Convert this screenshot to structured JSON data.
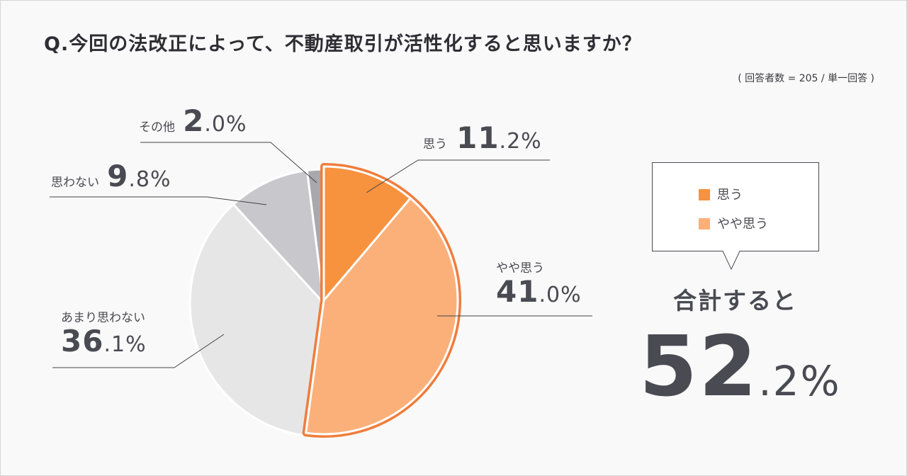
{
  "title": "Q.今回の法改正によって、不動産取引が活性化すると思いますか？",
  "note": "( 回答者数  = 205 / 単一回答 )",
  "colors": {
    "omou": "#f7923f",
    "yaya_omou": "#fbb07a",
    "amari": "#e6e6e6",
    "omowanai": "#c8c8cc",
    "sonota": "#a9a9ad",
    "highlight_outline": "#f07d3c",
    "text": "#4a4a52",
    "leader": "#444444"
  },
  "labels": {
    "omou": {
      "name": "思う",
      "int": "11",
      "dec": ".2%"
    },
    "yaya_omou": {
      "name": "やや思う",
      "int": "41",
      "dec": ".0%"
    },
    "amari": {
      "name": "あまり思わない",
      "int": "36",
      "dec": ".1%"
    },
    "omowanai": {
      "name": "思わない",
      "int": "9",
      "dec": ".8%"
    },
    "sonota": {
      "name": "その他",
      "int": "2",
      "dec": ".0%"
    }
  },
  "legend": {
    "items": [
      "思う",
      "やや思う"
    ]
  },
  "total": {
    "label": "合計すると",
    "int": "52",
    "dec": ".2%"
  },
  "chart_data": {
    "type": "pie",
    "title": "Q.今回の法改正によって、不動産取引が活性化すると思いますか？",
    "categories": [
      "思う",
      "やや思う",
      "あまり思わない",
      "思わない",
      "その他"
    ],
    "values": [
      11.2,
      41.0,
      36.1,
      9.8,
      2.0
    ],
    "unit": "%",
    "highlighted": [
      "思う",
      "やや思う"
    ],
    "highlighted_total": 52.2,
    "respondents": 205
  }
}
